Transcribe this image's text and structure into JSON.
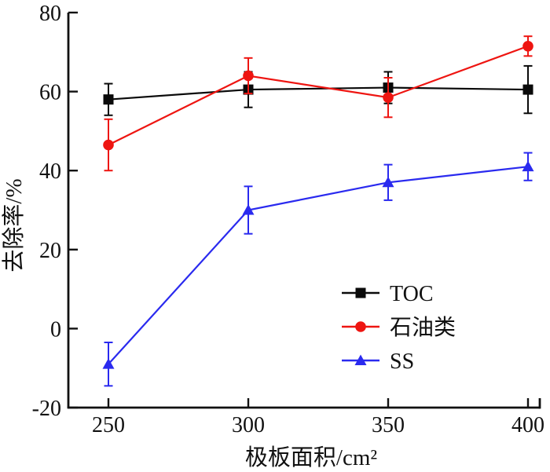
{
  "figure": {
    "background": "#ffffff",
    "axis_color": "#111111"
  },
  "chart_data": {
    "type": "line",
    "title": "",
    "xlabel": "极板面积/cm²",
    "ylabel": "去除率/%",
    "x": [
      250,
      300,
      350,
      400
    ],
    "xticks": [
      250,
      300,
      350,
      400
    ],
    "yticks": [
      80,
      60,
      40,
      20,
      0,
      -20
    ],
    "xlim": [
      236,
      404
    ],
    "ylim": [
      -20,
      80
    ],
    "grid": false,
    "error_bars": true,
    "legend_position": "inside-lower-right",
    "series": [
      {
        "name": "TOC",
        "color": "#0a0a0a",
        "marker": "square",
        "values": [
          58,
          60.5,
          61,
          60.5
        ],
        "errors": [
          4,
          4.5,
          4,
          6
        ]
      },
      {
        "name": "石油类",
        "color": "#ee1511",
        "marker": "circle",
        "values": [
          46.5,
          64,
          58.5,
          71.5
        ],
        "errors": [
          6.5,
          4.5,
          5,
          2.5
        ]
      },
      {
        "name": "SS",
        "color": "#2a2aef",
        "marker": "triangle",
        "values": [
          -9,
          30,
          37,
          41
        ],
        "errors": [
          5.5,
          6,
          4.5,
          3.5
        ]
      }
    ]
  }
}
